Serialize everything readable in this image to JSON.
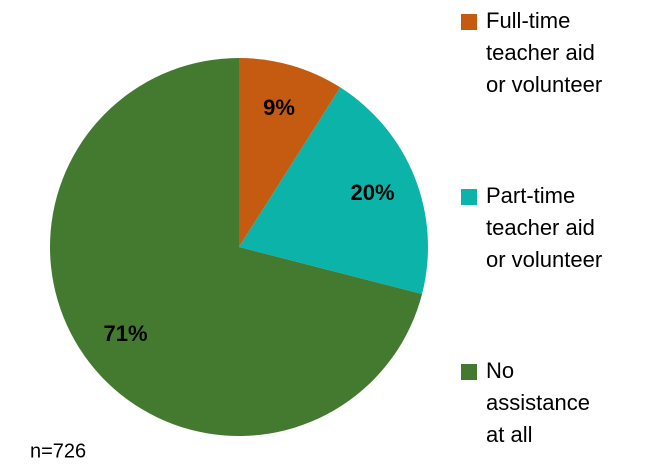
{
  "chart_data": {
    "type": "pie",
    "categories": [
      "Full-time teacher aid or volunteer",
      "Part-time teacher aid or volunteer",
      "No assistance at all"
    ],
    "values": [
      9,
      20,
      71
    ],
    "value_labels": [
      "9%",
      "20%",
      "71%"
    ],
    "colors": [
      "#c55a11",
      "#0bb3a8",
      "#437a30"
    ],
    "note": "n=726"
  }
}
